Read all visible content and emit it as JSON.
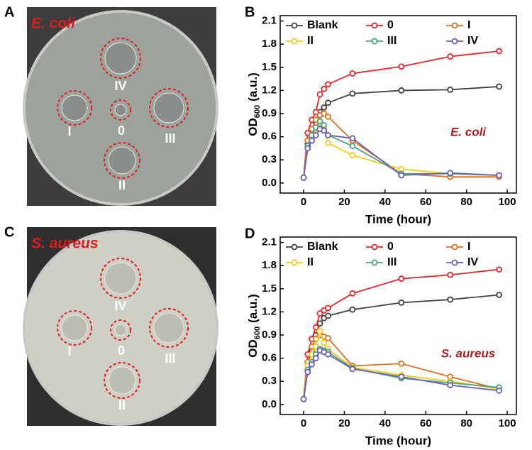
{
  "photos": [
    {
      "letter": "A",
      "organism": "E. coli",
      "zones": [
        "IV",
        "I",
        "0",
        "III",
        "II"
      ]
    },
    {
      "letter": "C",
      "organism": "S. aureus",
      "zones": [
        "IV",
        "I",
        "0",
        "III",
        "II"
      ]
    }
  ],
  "chart_data": [
    {
      "type": "line",
      "panel_label": "B",
      "annotation": "E. coli",
      "xlabel": "Time (hour)",
      "ylabel": [
        "OD",
        "600",
        "(a.u.)"
      ],
      "x": [
        0,
        2,
        4,
        6,
        8,
        10,
        12,
        24,
        48,
        72,
        96
      ],
      "xlim": [
        -11.5,
        104.5
      ],
      "xticks": [
        0,
        20,
        40,
        60,
        80,
        100
      ],
      "ylim": [
        -0.13,
        2.17
      ],
      "yticks": [
        {
          "value": 0,
          "label": "0.0"
        },
        0.3,
        0.6,
        0.9,
        1.2,
        1.5,
        1.8,
        2.1
      ],
      "series": [
        {
          "name": "Blank",
          "color": "#404040",
          "values": [
            0.07,
            0.5,
            0.62,
            0.78,
            0.92,
            0.98,
            1.04,
            1.16,
            1.2,
            1.21,
            1.25
          ]
        },
        {
          "name": "0",
          "color": "#e8262a",
          "values": [
            0.07,
            0.65,
            0.82,
            0.92,
            1.15,
            1.22,
            1.28,
            1.42,
            1.51,
            1.64,
            1.71
          ]
        },
        {
          "name": "I",
          "color": "#e07020",
          "values": [
            0.07,
            0.55,
            0.7,
            0.82,
            0.88,
            0.9,
            0.86,
            0.55,
            0.12,
            0.08,
            0.08
          ]
        },
        {
          "name": "II",
          "color": "#f2cc18",
          "values": [
            0.07,
            0.45,
            0.6,
            0.7,
            0.78,
            0.7,
            0.52,
            0.36,
            0.18,
            0.12,
            0.1
          ]
        },
        {
          "name": "III",
          "color": "#4aa57a",
          "values": [
            0.07,
            0.48,
            0.62,
            0.72,
            0.8,
            0.75,
            0.62,
            0.48,
            0.12,
            0.12,
            0.1
          ]
        },
        {
          "name": "IV",
          "color": "#6a5fb8",
          "values": [
            0.07,
            0.45,
            0.55,
            0.62,
            0.7,
            0.68,
            0.62,
            0.58,
            0.1,
            0.13,
            0.1
          ]
        }
      ]
    },
    {
      "type": "line",
      "panel_label": "D",
      "annotation": "S. aureus",
      "xlabel": "Time (hour)",
      "ylabel": [
        "OD",
        "600",
        "(a.u.)"
      ],
      "x": [
        0,
        2,
        4,
        6,
        8,
        10,
        12,
        24,
        48,
        72,
        96
      ],
      "xlim": [
        -11.5,
        104.5
      ],
      "xticks": [
        0,
        20,
        40,
        60,
        80,
        100
      ],
      "ylim": [
        -0.13,
        2.17
      ],
      "yticks": [
        {
          "value": 0,
          "label": "0.0"
        },
        0.3,
        0.6,
        0.9,
        1.2,
        1.5,
        1.8,
        2.1
      ],
      "series": [
        {
          "name": "Blank",
          "color": "#404040",
          "values": [
            0.07,
            0.5,
            0.7,
            0.9,
            1.05,
            1.12,
            1.15,
            1.23,
            1.32,
            1.36,
            1.42
          ]
        },
        {
          "name": "0",
          "color": "#e8262a",
          "values": [
            0.07,
            0.65,
            0.85,
            1.0,
            1.18,
            1.22,
            1.25,
            1.44,
            1.63,
            1.68,
            1.75
          ]
        },
        {
          "name": "I",
          "color": "#e07020",
          "values": [
            0.07,
            0.55,
            0.75,
            0.85,
            0.9,
            0.88,
            0.86,
            0.5,
            0.53,
            0.36,
            0.2
          ]
        },
        {
          "name": "II",
          "color": "#f2cc18",
          "values": [
            0.07,
            0.5,
            0.65,
            0.75,
            0.95,
            0.8,
            0.72,
            0.48,
            0.38,
            0.3,
            0.2
          ]
        },
        {
          "name": "III",
          "color": "#4aa57a",
          "values": [
            0.07,
            0.45,
            0.55,
            0.65,
            0.72,
            0.7,
            0.68,
            0.47,
            0.34,
            0.28,
            0.22
          ]
        },
        {
          "name": "IV",
          "color": "#6a5fb8",
          "values": [
            0.07,
            0.42,
            0.52,
            0.6,
            0.7,
            0.68,
            0.65,
            0.46,
            0.36,
            0.25,
            0.18
          ]
        }
      ]
    }
  ]
}
